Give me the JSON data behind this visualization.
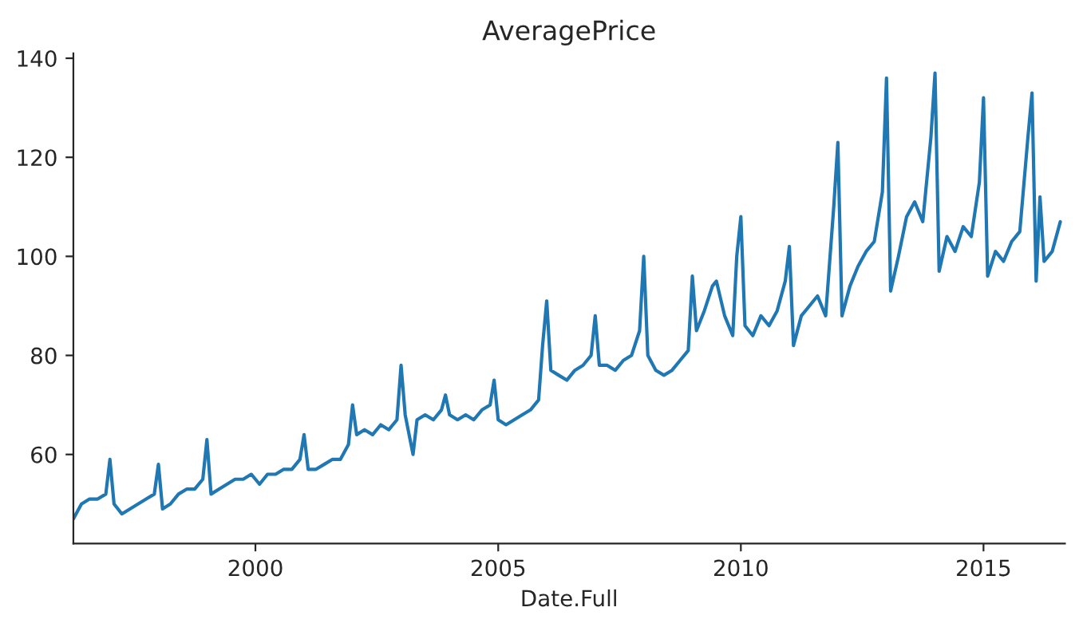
{
  "chart_data": {
    "type": "line",
    "title": "AveragePrice",
    "xlabel": "Date.Full",
    "x": [
      "1996-04",
      "1996-06",
      "1996-08",
      "1996-10",
      "1996-12",
      "1997-01",
      "1997-02",
      "1997-04",
      "1997-06",
      "1997-08",
      "1997-10",
      "1997-12",
      "1998-01",
      "1998-02",
      "1998-04",
      "1998-06",
      "1998-08",
      "1998-10",
      "1998-12",
      "1999-01",
      "1999-02",
      "1999-04",
      "1999-06",
      "1999-08",
      "1999-10",
      "1999-12",
      "2000-02",
      "2000-04",
      "2000-06",
      "2000-08",
      "2000-10",
      "2000-12",
      "2001-01",
      "2001-02",
      "2001-04",
      "2001-06",
      "2001-08",
      "2001-10",
      "2001-12",
      "2002-01",
      "2002-02",
      "2002-04",
      "2002-06",
      "2002-08",
      "2002-10",
      "2002-12",
      "2003-01",
      "2003-02",
      "2003-04",
      "2003-05",
      "2003-07",
      "2003-09",
      "2003-11",
      "2003-12",
      "2004-01",
      "2004-03",
      "2004-05",
      "2004-07",
      "2004-09",
      "2004-11",
      "2004-12",
      "2005-01",
      "2005-03",
      "2005-05",
      "2005-07",
      "2005-09",
      "2005-11",
      "2005-12",
      "2006-01",
      "2006-02",
      "2006-04",
      "2006-06",
      "2006-08",
      "2006-10",
      "2006-12",
      "2007-01",
      "2007-02",
      "2007-04",
      "2007-06",
      "2007-08",
      "2007-10",
      "2007-12",
      "2008-01",
      "2008-02",
      "2008-04",
      "2008-06",
      "2008-08",
      "2008-10",
      "2008-12",
      "2009-01",
      "2009-02",
      "2009-04",
      "2009-06",
      "2009-07",
      "2009-09",
      "2009-11",
      "2009-12",
      "2010-01",
      "2010-02",
      "2010-04",
      "2010-06",
      "2010-08",
      "2010-10",
      "2010-12",
      "2011-01",
      "2011-02",
      "2011-04",
      "2011-06",
      "2011-08",
      "2011-10",
      "2011-12",
      "2012-01",
      "2012-02",
      "2012-04",
      "2012-06",
      "2012-08",
      "2012-10",
      "2012-12",
      "2013-01",
      "2013-02",
      "2013-04",
      "2013-06",
      "2013-08",
      "2013-10",
      "2013-12",
      "2014-01",
      "2014-02",
      "2014-04",
      "2014-06",
      "2014-08",
      "2014-10",
      "2014-12",
      "2015-01",
      "2015-02",
      "2015-04",
      "2015-06",
      "2015-08",
      "2015-10",
      "2015-12",
      "2016-01",
      "2016-02",
      "2016-03",
      "2016-04",
      "2016-06",
      "2016-08"
    ],
    "series": [
      {
        "color": "#1f77b4",
        "values": [
          47,
          50,
          51,
          51,
          52,
          59,
          50,
          48,
          49,
          50,
          51,
          52,
          58,
          49,
          50,
          52,
          53,
          53,
          55,
          63,
          52,
          53,
          54,
          55,
          55,
          56,
          54,
          56,
          56,
          57,
          57,
          59,
          64,
          57,
          57,
          58,
          59,
          59,
          62,
          70,
          64,
          65,
          64,
          66,
          65,
          67,
          78,
          68,
          60,
          67,
          68,
          67,
          69,
          72,
          68,
          67,
          68,
          67,
          69,
          70,
          75,
          67,
          66,
          67,
          68,
          69,
          71,
          82,
          91,
          77,
          76,
          75,
          77,
          78,
          80,
          88,
          78,
          78,
          77,
          79,
          80,
          85,
          100,
          80,
          77,
          76,
          77,
          79,
          81,
          96,
          85,
          89,
          94,
          95,
          88,
          84,
          100,
          108,
          86,
          84,
          88,
          86,
          89,
          95,
          102,
          82,
          88,
          90,
          92,
          88,
          110,
          123,
          88,
          94,
          98,
          101,
          103,
          113,
          136,
          93,
          100,
          108,
          111,
          107,
          124,
          137,
          97,
          104,
          101,
          106,
          104,
          115,
          132,
          96,
          101,
          99,
          103,
          105,
          124,
          133,
          95,
          112,
          99,
          101,
          107
        ]
      }
    ],
    "xlim": [
      "1996-04-01",
      "2016-09-05"
    ],
    "xticks": [
      "2000",
      "2005",
      "2010",
      "2015"
    ],
    "ylim": [
      42,
      141
    ],
    "yticks": [
      60,
      80,
      100,
      120,
      140
    ],
    "grid": false,
    "legend": false
  }
}
